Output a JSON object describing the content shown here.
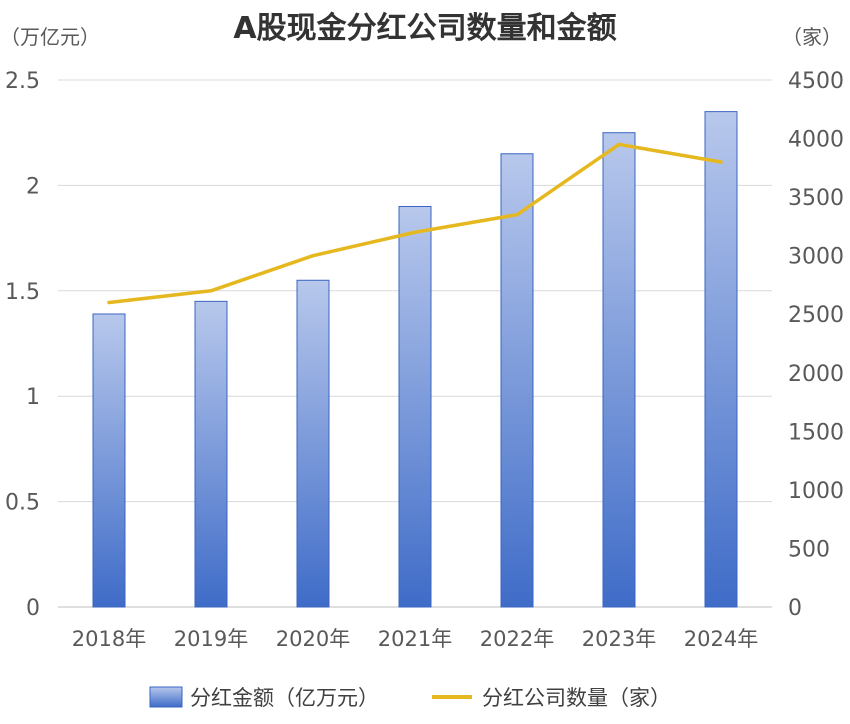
{
  "chart_data": {
    "type": "bar",
    "title": "A股现金分红公司数量和金额",
    "left_unit": "（万亿元）",
    "right_unit": "（家）",
    "categories": [
      "2018年",
      "2019年",
      "2020年",
      "2021年",
      "2022年",
      "2023年",
      "2024年"
    ],
    "series": [
      {
        "name": "分红金额（亿万元）",
        "type": "bar",
        "axis": "left",
        "values": [
          1.39,
          1.45,
          1.55,
          1.9,
          2.15,
          2.25,
          2.35
        ]
      },
      {
        "name": "分红公司数量（家）",
        "type": "line",
        "axis": "right",
        "values": [
          2600,
          2700,
          3000,
          3200,
          3350,
          3950,
          3800
        ]
      }
    ],
    "ylim_left": [
      0,
      2.5
    ],
    "yticks_left": [
      "0",
      "0.5",
      "1",
      "1.5",
      "2",
      "2.5"
    ],
    "ylim_right": [
      0,
      4500
    ],
    "yticks_right": [
      "0",
      "500",
      "1000",
      "1500",
      "2000",
      "2500",
      "3000",
      "3500",
      "4000",
      "4500"
    ],
    "grid": true,
    "legend_position": "bottom",
    "colors": {
      "bar_top": "#b8c8ec",
      "bar_bottom": "#3f6cc8",
      "bar_edge": "#3a64c0",
      "line": "#e6b820",
      "grid": "#d9d9d9",
      "axis": "#bfbfbf"
    }
  }
}
